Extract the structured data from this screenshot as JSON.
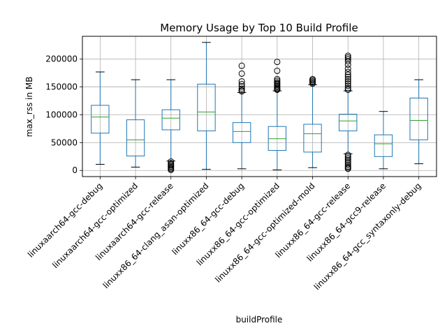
{
  "chart_data": {
    "type": "boxplot",
    "title": "Memory Usage by Top 10 Build Profile",
    "xlabel": "buildProfile",
    "ylabel": "max_rss in MB",
    "ylim": [
      -11000,
      241000
    ],
    "yticks": [
      0,
      50000,
      100000,
      150000,
      200000
    ],
    "ytick_labels": [
      "0",
      "50000",
      "100000",
      "150000",
      "200000"
    ],
    "grid": true,
    "colors": {
      "box": "#1f77b4",
      "median": "#2ca02c",
      "whisker": "#000000",
      "grid": "#b0b0b0"
    },
    "categories": [
      "linuxaarch64-gcc-debug",
      "linuxaarch64-gcc-optimized",
      "linuxaarch64-gcc-release",
      "linuxx86_64-clang_asan-optimized",
      "linuxx86_64-gcc-debug",
      "linuxx86_64-gcc-optimized",
      "linuxx86_64-gcc-optimized-mold",
      "linuxx86_64-gcc-release",
      "linuxx86_64-gcc9-release",
      "linuxx86_64-gcc_syntaxonly-debug"
    ],
    "boxes": [
      {
        "whisker_low": 11000,
        "q1": 67000,
        "median": 96000,
        "q3": 117000,
        "whisker_high": 177000,
        "outliers": []
      },
      {
        "whisker_low": 6000,
        "q1": 26000,
        "median": 55000,
        "q3": 91000,
        "whisker_high": 163000,
        "outliers": []
      },
      {
        "whisker_low": 17000,
        "q1": 73000,
        "median": 94000,
        "q3": 109000,
        "whisker_high": 163000,
        "outliers": [
          16000,
          13000,
          11000,
          9000,
          7000,
          5000,
          3000,
          1000
        ]
      },
      {
        "whisker_low": 2000,
        "q1": 71000,
        "median": 105000,
        "q3": 155000,
        "whisker_high": 230000,
        "outliers": []
      },
      {
        "whisker_low": 3000,
        "q1": 50000,
        "median": 70000,
        "q3": 86000,
        "whisker_high": 140000,
        "outliers": [
          188000,
          174000,
          160000,
          155000,
          151000,
          147000,
          144000,
          142000
        ]
      },
      {
        "whisker_low": 1000,
        "q1": 36000,
        "median": 57000,
        "q3": 79000,
        "whisker_high": 143000,
        "outliers": [
          195000,
          179000,
          164000,
          161000,
          158000,
          156000,
          154000,
          152000,
          150000,
          148000,
          146000,
          145000
        ]
      },
      {
        "whisker_low": 5000,
        "q1": 33000,
        "median": 66000,
        "q3": 83000,
        "whisker_high": 154000,
        "outliers": [
          164000,
          162000,
          160000,
          158000,
          156000
        ]
      },
      {
        "whisker_low": 30000,
        "q1": 71000,
        "median": 89000,
        "q3": 101000,
        "whisker_high": 143000,
        "outliers": [
          206000,
          203000,
          200000,
          196000,
          190000,
          183000,
          177000,
          172000,
          168000,
          164000,
          160000,
          156000,
          152000,
          148000,
          145000,
          28000,
          25000,
          22000,
          19000,
          16000,
          13000,
          10000,
          7000,
          5000,
          3000
        ]
      },
      {
        "whisker_low": 3000,
        "q1": 25000,
        "median": 48000,
        "q3": 64000,
        "whisker_high": 106000,
        "outliers": []
      },
      {
        "whisker_low": 12000,
        "q1": 55000,
        "median": 90000,
        "q3": 130000,
        "whisker_high": 163000,
        "outliers": []
      }
    ]
  }
}
